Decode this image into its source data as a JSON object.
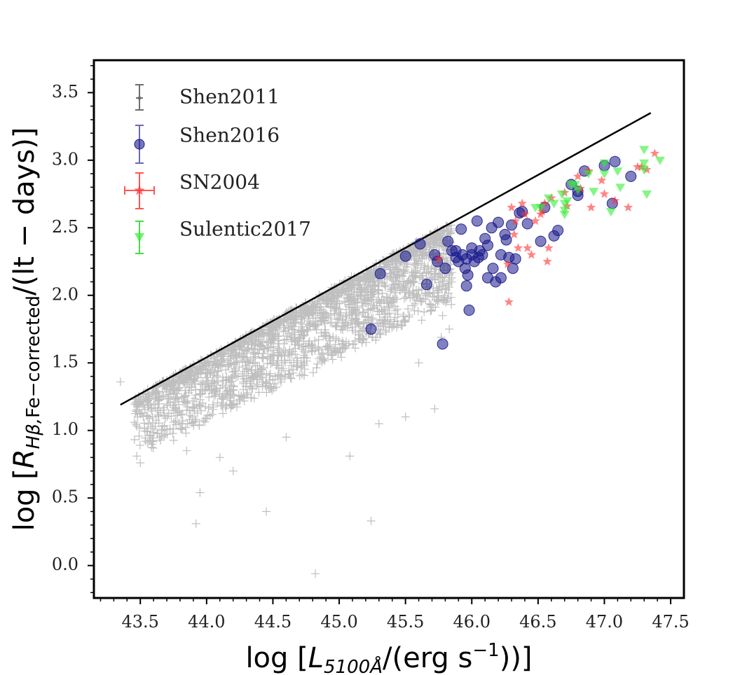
{
  "chart_data": {
    "type": "scatter",
    "xlim": [
      43.15,
      47.6
    ],
    "ylim": [
      -0.24,
      3.74
    ],
    "xticks": [
      43.5,
      44.0,
      44.5,
      45.0,
      45.5,
      46.0,
      46.5,
      47.0,
      47.5
    ],
    "yticks": [
      0.0,
      0.5,
      1.0,
      1.5,
      2.0,
      2.5,
      3.0,
      3.5
    ],
    "xtick_labels": [
      "43.5",
      "44.0",
      "44.5",
      "45.0",
      "45.5",
      "46.0",
      "46.5",
      "47.0",
      "47.5"
    ],
    "ytick_labels": [
      "0.0",
      "0.5",
      "1.0",
      "1.5",
      "2.0",
      "2.5",
      "3.0",
      "3.5"
    ],
    "xlabel": {
      "prefix": "log [",
      "L": "L",
      "sub": "5100Å",
      "unit": "/(erg s",
      "sup": "−1",
      "suffix": "))]"
    },
    "ylabel": {
      "prefix": "log [",
      "R": "R",
      "sub": "Hβ,",
      "sub2": "Fe−corrected",
      "suffix": "/(lt − days)]"
    },
    "reference_line": {
      "name": "R-L relation",
      "x": [
        43.35,
        47.35
      ],
      "y": [
        1.19,
        3.35
      ],
      "color": "#000000"
    },
    "legend": {
      "position": "top-left",
      "entries": [
        "Shen2011",
        "Shen2016",
        "SN2004",
        "Sulentic2017"
      ]
    },
    "series": [
      {
        "name": "Shen2011",
        "marker": "plus",
        "color": "#808080",
        "alpha": 0.5,
        "generated_cloud": {
          "n": 2200,
          "x_range": [
            43.45,
            45.85
          ],
          "upper_offset": -0.02,
          "spread": 0.42
        },
        "outliers": [
          [
            43.35,
            1.36
          ],
          [
            43.5,
            0.76
          ],
          [
            43.95,
            0.54
          ],
          [
            43.92,
            0.31
          ],
          [
            44.45,
            0.4
          ],
          [
            44.82,
            -0.06
          ],
          [
            45.24,
            0.33
          ],
          [
            45.08,
            0.81
          ],
          [
            45.72,
            1.16
          ],
          [
            45.5,
            1.1
          ],
          [
            44.1,
            0.8
          ],
          [
            43.85,
            0.85
          ],
          [
            44.2,
            0.7
          ],
          [
            45.3,
            1.05
          ],
          [
            44.6,
            0.95
          ],
          [
            45.6,
            1.5
          ],
          [
            45.78,
            1.85
          ],
          [
            45.83,
            1.75
          ],
          [
            45.75,
            1.96
          ],
          [
            45.77,
            1.69
          ]
        ]
      },
      {
        "name": "Shen2016",
        "marker": "circle",
        "color": "#1a1a8c",
        "alpha": 0.55,
        "points": [
          [
            45.24,
            1.75
          ],
          [
            45.31,
            2.16
          ],
          [
            45.5,
            2.29
          ],
          [
            45.61,
            2.38
          ],
          [
            45.66,
            2.08
          ],
          [
            45.72,
            2.3
          ],
          [
            45.74,
            2.25
          ],
          [
            45.78,
            1.64
          ],
          [
            45.8,
            2.2
          ],
          [
            45.82,
            2.4
          ],
          [
            45.85,
            2.33
          ],
          [
            45.88,
            2.33
          ],
          [
            45.92,
            2.49
          ],
          [
            45.93,
            2.3
          ],
          [
            45.95,
            2.2
          ],
          [
            45.96,
            2.27
          ],
          [
            45.97,
            2.15
          ],
          [
            45.96,
            2.07
          ],
          [
            45.98,
            1.89
          ],
          [
            46.0,
            2.3
          ],
          [
            46.02,
            2.25
          ],
          [
            46.04,
            2.55
          ],
          [
            46.06,
            2.33
          ],
          [
            46.08,
            2.3
          ],
          [
            46.1,
            2.42
          ],
          [
            46.12,
            2.37
          ],
          [
            46.12,
            2.13
          ],
          [
            46.15,
            2.5
          ],
          [
            46.16,
            2.2
          ],
          [
            46.18,
            2.1
          ],
          [
            46.2,
            2.54
          ],
          [
            46.22,
            2.3
          ],
          [
            46.22,
            2.13
          ],
          [
            46.25,
            2.45
          ],
          [
            46.26,
            2.41
          ],
          [
            46.28,
            2.28
          ],
          [
            46.3,
            2.52
          ],
          [
            46.31,
            2.2
          ],
          [
            46.33,
            2.27
          ],
          [
            46.36,
            2.61
          ],
          [
            46.38,
            2.62
          ],
          [
            46.42,
            2.53
          ],
          [
            46.52,
            2.4
          ],
          [
            46.55,
            2.65
          ],
          [
            46.62,
            2.44
          ],
          [
            46.65,
            2.48
          ],
          [
            46.75,
            2.82
          ],
          [
            46.8,
            2.77
          ],
          [
            46.8,
            2.74
          ],
          [
            46.85,
            2.92
          ],
          [
            47.0,
            2.96
          ],
          [
            47.06,
            2.68
          ],
          [
            47.08,
            2.99
          ],
          [
            47.2,
            2.88
          ],
          [
            45.9,
            2.25
          ],
          [
            46.05,
            2.28
          ],
          [
            46.0,
            2.35
          ],
          [
            45.88,
            2.28
          ]
        ]
      },
      {
        "name": "SN2004",
        "marker": "star",
        "color": "#ff3333",
        "alpha": 0.6,
        "points": [
          [
            45.75,
            2.27
          ],
          [
            46.28,
            1.95
          ],
          [
            46.3,
            2.65
          ],
          [
            46.32,
            2.45
          ],
          [
            46.33,
            2.55
          ],
          [
            46.35,
            2.35
          ],
          [
            46.38,
            2.68
          ],
          [
            46.4,
            2.6
          ],
          [
            46.42,
            2.35
          ],
          [
            46.45,
            2.3
          ],
          [
            46.48,
            2.55
          ],
          [
            46.52,
            2.6
          ],
          [
            46.55,
            2.68
          ],
          [
            46.57,
            2.25
          ],
          [
            46.58,
            2.35
          ],
          [
            46.6,
            2.72
          ],
          [
            46.7,
            2.76
          ],
          [
            46.72,
            2.66
          ],
          [
            46.8,
            2.88
          ],
          [
            46.82,
            2.79
          ],
          [
            46.88,
            2.92
          ],
          [
            46.9,
            2.65
          ],
          [
            46.98,
            2.85
          ],
          [
            47.0,
            2.75
          ],
          [
            47.08,
            2.7
          ],
          [
            47.18,
            2.65
          ],
          [
            47.25,
            2.95
          ],
          [
            47.28,
            2.95
          ],
          [
            47.32,
            2.93
          ],
          [
            47.38,
            3.05
          ],
          [
            46.53,
            2.62
          ],
          [
            46.27,
            2.23
          ]
        ]
      },
      {
        "name": "Sulentic2017",
        "marker": "triangle-down",
        "color": "#33ee33",
        "alpha": 0.6,
        "points": [
          [
            46.48,
            2.65
          ],
          [
            46.52,
            2.65
          ],
          [
            46.58,
            2.72
          ],
          [
            46.62,
            2.68
          ],
          [
            46.68,
            2.75
          ],
          [
            46.7,
            2.68
          ],
          [
            46.7,
            2.63
          ],
          [
            46.7,
            2.6
          ],
          [
            46.72,
            2.7
          ],
          [
            46.78,
            2.82
          ],
          [
            46.8,
            2.78
          ],
          [
            46.88,
            2.9
          ],
          [
            46.92,
            2.77
          ],
          [
            47.0,
            2.98
          ],
          [
            47.0,
            2.9
          ],
          [
            47.05,
            2.62
          ],
          [
            47.1,
            2.92
          ],
          [
            47.12,
            2.8
          ],
          [
            47.3,
            3.08
          ],
          [
            47.3,
            2.98
          ],
          [
            47.3,
            2.93
          ],
          [
            47.32,
            2.75
          ],
          [
            47.42,
            3.0
          ],
          [
            46.75,
            2.82
          ]
        ]
      }
    ]
  }
}
